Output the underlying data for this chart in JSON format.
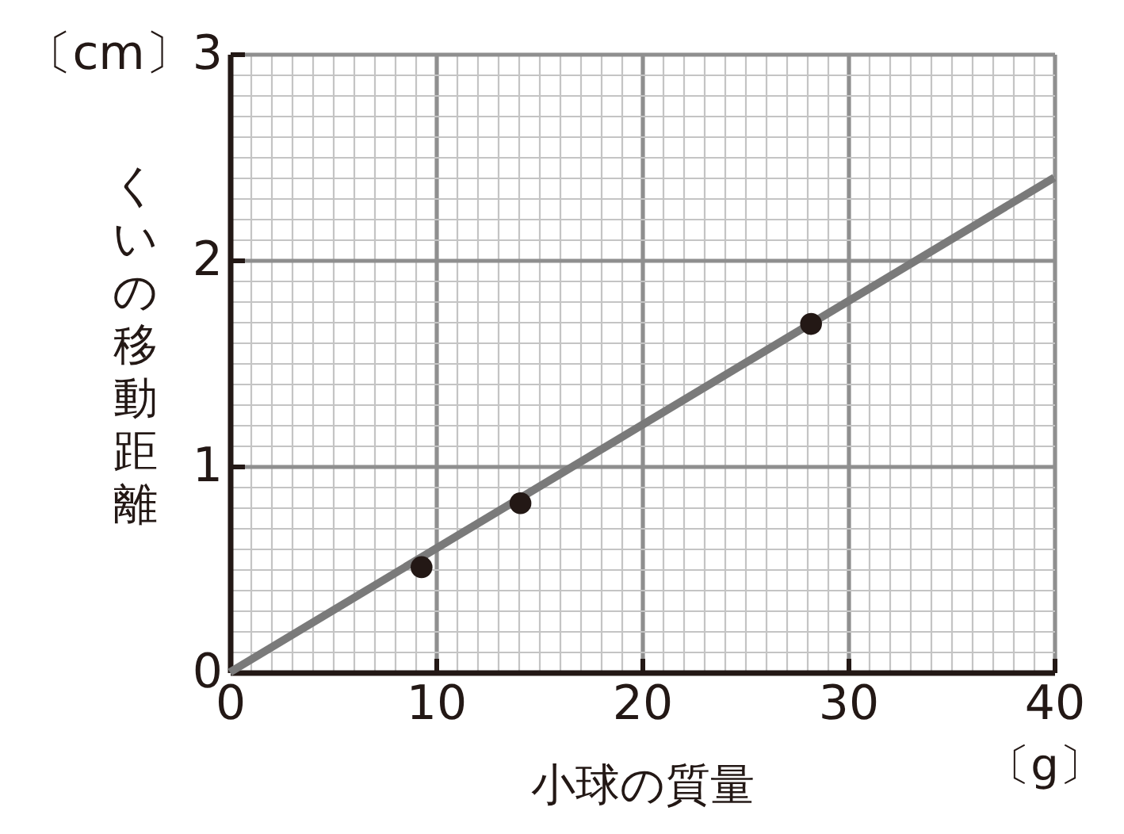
{
  "chart_data": {
    "type": "scatter",
    "xlabel": "小球の質量",
    "ylabel": "くいの移動距離",
    "annotations": [
      "〔g〕"
    ],
    "xlim": [
      0,
      40
    ],
    "ylim": [
      0,
      3
    ],
    "xticks": [
      0,
      {
        "value": 1,
        "label": null
      },
      {
        "value": 2,
        "label": null
      },
      {
        "value": 3,
        "label": null
      },
      {
        "value": 4,
        "label": null
      },
      {
        "value": 5,
        "label": null
      },
      {
        "value": 6,
        "label": null
      },
      {
        "value": 7,
        "label": null
      },
      {
        "value": 8,
        "label": null
      },
      {
        "value": 9,
        "label": null
      },
      10,
      {
        "value": 11,
        "label": null
      },
      {
        "value": 12,
        "label": null
      },
      {
        "value": 13,
        "label": null
      },
      {
        "value": 14,
        "label": null
      },
      {
        "value": 15,
        "label": null
      },
      {
        "value": 16,
        "label": null
      },
      {
        "value": 17,
        "label": null
      },
      {
        "value": 18,
        "label": null
      },
      {
        "value": 19,
        "label": null
      },
      20,
      {
        "value": 21,
        "label": null
      },
      {
        "value": 22,
        "label": null
      },
      {
        "value": 23,
        "label": null
      },
      {
        "value": 24,
        "label": null
      },
      {
        "value": 25,
        "label": null
      },
      {
        "value": 26,
        "label": null
      },
      {
        "value": 27,
        "label": null
      },
      {
        "value": 28,
        "label": null
      },
      {
        "value": 29,
        "label": null
      },
      30,
      {
        "value": 31,
        "label": null
      },
      {
        "value": 32,
        "label": null
      },
      {
        "value": 33,
        "label": null
      },
      {
        "value": 34,
        "label": null
      },
      {
        "value": 35,
        "label": null
      },
      {
        "value": 36,
        "label": null
      },
      {
        "value": 37,
        "label": null
      },
      {
        "value": 38,
        "label": null
      },
      {
        "value": 39,
        "label": null
      },
      40
    ],
    "yticks": [
      0,
      {
        "value": 0.1,
        "label": null
      },
      {
        "value": 0.2,
        "label": null
      },
      {
        "value": 0.3,
        "label": null
      },
      {
        "value": 0.4,
        "label": null
      },
      {
        "value": 0.5,
        "label": null
      },
      {
        "value": 0.6,
        "label": null
      },
      {
        "value": 0.7,
        "label": null
      },
      {
        "value": 0.8,
        "label": null
      },
      {
        "value": 0.9,
        "label": null
      },
      1,
      {
        "value": 1.1,
        "label": null
      },
      {
        "value": 1.2,
        "label": null
      },
      {
        "value": 1.3,
        "label": null
      },
      {
        "value": 1.4,
        "label": null
      },
      {
        "value": 1.5,
        "label": null
      },
      {
        "value": 1.6,
        "label": null
      },
      {
        "value": 1.7,
        "label": null
      },
      {
        "value": 1.8,
        "label": null
      },
      {
        "value": 1.9,
        "label": null
      },
      2,
      {
        "value": 2.1,
        "label": null
      },
      {
        "value": 2.2,
        "label": null
      },
      {
        "value": 2.3,
        "label": null
      },
      {
        "value": 2.4,
        "label": null
      },
      {
        "value": 2.5,
        "label": null
      },
      {
        "value": 2.6,
        "label": null
      },
      {
        "value": 2.7,
        "label": null
      },
      {
        "value": 2.8,
        "label": null
      },
      {
        "value": 2.9,
        "label": null
      },
      {
        "value": 3,
        "label": "〔cm〕3"
      }
    ],
    "grid": true,
    "series": [
      {
        "type": "line",
        "color": "#7a7a7a",
        "x": [
          0,
          40
        ],
        "values": [
          0,
          2.4
        ]
      },
      {
        "color": "#231815",
        "marker": "circle",
        "x": [
          9.3,
          14.1,
          28.2
        ],
        "values": [
          0.51,
          0.82,
          1.69
        ]
      }
    ]
  }
}
